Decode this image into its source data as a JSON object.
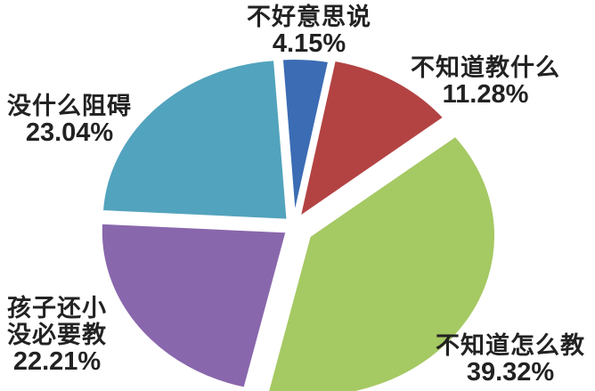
{
  "chart_data": {
    "type": "pie",
    "title": "",
    "legend_position": "none",
    "labels_outside": true,
    "start_angle_deg_cw_from_top": -4,
    "gap_color": "#ffffff",
    "slices": [
      {
        "label": "不好意思说",
        "value": 4.15,
        "display": "4.15%",
        "color": "#3b6cb4",
        "explode": 7
      },
      {
        "label": "不知道教什么",
        "value": 11.28,
        "display": "11.28%",
        "color": "#b34343",
        "explode": 10
      },
      {
        "label": "不知道怎么教",
        "value": 39.32,
        "display": "39.32%",
        "color": "#a5c963",
        "explode": 20
      },
      {
        "label": "孩子还小没必要教",
        "value": 22.21,
        "display": "22.21%",
        "color": "#8967ac",
        "explode": 9
      },
      {
        "label": "没什么阻碍",
        "value": 23.04,
        "display": "23.04%",
        "color": "#52a3bd",
        "explode": 9
      }
    ]
  },
  "labels": {
    "top": {
      "line1": "不好意思说",
      "line2": "4.15%"
    },
    "top_right": {
      "line1": "不知道教什么",
      "line2": "11.28%"
    },
    "left": {
      "line1": "没什么阻碍",
      "line2": "23.04%"
    },
    "bottom_left": {
      "line1": "孩子还小",
      "line2": "没必要教",
      "line3": "22.21%"
    },
    "bottom_right": {
      "line1": "不知道怎么教",
      "line2": "39.32%"
    }
  },
  "colors": {
    "background": "#ffffff",
    "label_text": "#222222"
  }
}
